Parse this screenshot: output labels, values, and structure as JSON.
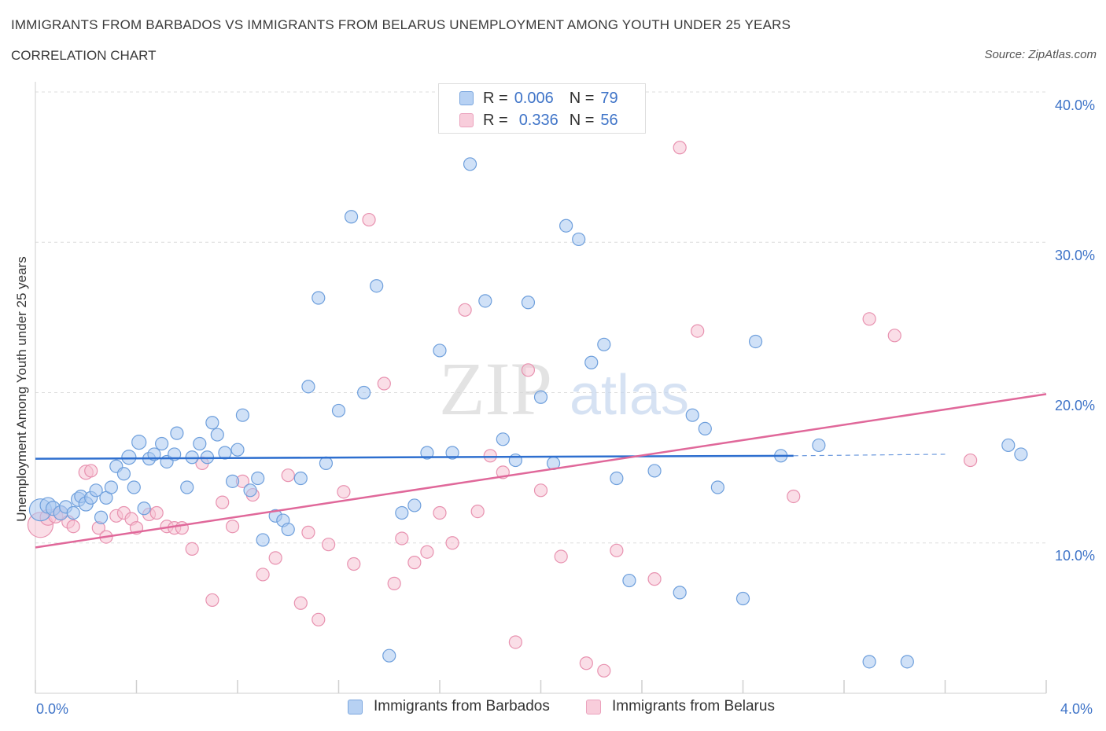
{
  "header": {
    "title": "IMMIGRANTS FROM BARBADOS VS IMMIGRANTS FROM BELARUS UNEMPLOYMENT AMONG YOUTH UNDER 25 YEARS",
    "subtitle": "CORRELATION CHART",
    "source": "Source: ZipAtlas.com"
  },
  "legend": {
    "rows": [
      {
        "r_label": "R =",
        "r_value": "0.006",
        "n_label": "N =",
        "n_value": "79"
      },
      {
        "r_label": "R =",
        "r_value": "0.336",
        "n_label": "N =",
        "n_value": "56"
      }
    ],
    "bottom": [
      "Immigrants from Barbados",
      "Immigrants from Belarus"
    ]
  },
  "watermark": {
    "zip": "ZIP",
    "atlas": "atlas"
  },
  "colors": {
    "barbados_fill": "#a9c8f0",
    "barbados_stroke": "#6e9fdc",
    "barbados_line": "#2e6fcf",
    "belarus_fill": "#f6c3d3",
    "belarus_stroke": "#e892b0",
    "belarus_line": "#e0689a",
    "axis_text": "#3f74c8",
    "grid": "#dddddd"
  },
  "chart_data": {
    "type": "scatter",
    "xlabel": "",
    "ylabel": "Unemployment Among Youth under 25 years",
    "x_tick_labels": [
      "0.0%",
      "4.0%"
    ],
    "y_tick_labels": [
      "10.0%",
      "20.0%",
      "30.0%",
      "40.0%"
    ],
    "y_ticks": [
      10,
      20,
      30,
      40
    ],
    "xlim": [
      0,
      4
    ],
    "ylim": [
      0,
      40
    ],
    "grid": true,
    "legend_position": "top-center",
    "series": [
      {
        "name": "Immigrants from Barbados",
        "trend": {
          "x0": 0,
          "y0": 15.6,
          "x1": 3.0,
          "y1": 15.8,
          "dash_to_x": 3.6,
          "dash_to_y": 15.9
        },
        "points": [
          [
            0.02,
            12.2,
            14
          ],
          [
            0.05,
            12.5,
            10
          ],
          [
            0.07,
            12.3,
            9
          ],
          [
            0.1,
            12.0,
            9
          ],
          [
            0.12,
            12.4,
            8
          ],
          [
            0.15,
            12.0,
            8
          ],
          [
            0.17,
            12.9,
            9
          ],
          [
            0.18,
            13.1,
            8
          ],
          [
            0.2,
            12.6,
            9
          ],
          [
            0.22,
            13.0,
            8
          ],
          [
            0.24,
            13.5,
            8
          ],
          [
            0.26,
            11.7,
            8
          ],
          [
            0.28,
            13.0,
            8
          ],
          [
            0.3,
            13.7,
            8
          ],
          [
            0.32,
            15.1,
            8
          ],
          [
            0.35,
            14.6,
            8
          ],
          [
            0.37,
            15.7,
            9
          ],
          [
            0.39,
            13.7,
            8
          ],
          [
            0.41,
            16.7,
            9
          ],
          [
            0.43,
            12.3,
            8
          ],
          [
            0.45,
            15.6,
            8
          ],
          [
            0.47,
            15.9,
            8
          ],
          [
            0.5,
            16.6,
            8
          ],
          [
            0.52,
            15.4,
            8
          ],
          [
            0.55,
            15.9,
            8
          ],
          [
            0.56,
            17.3,
            8
          ],
          [
            0.6,
            13.7,
            8
          ],
          [
            0.62,
            15.7,
            8
          ],
          [
            0.65,
            16.6,
            8
          ],
          [
            0.68,
            15.7,
            8
          ],
          [
            0.7,
            18.0,
            8
          ],
          [
            0.72,
            17.2,
            8
          ],
          [
            0.75,
            16.0,
            8
          ],
          [
            0.78,
            14.1,
            8
          ],
          [
            0.8,
            16.2,
            8
          ],
          [
            0.82,
            18.5,
            8
          ],
          [
            0.85,
            13.5,
            8
          ],
          [
            0.88,
            14.3,
            8
          ],
          [
            0.9,
            10.2,
            8
          ],
          [
            0.95,
            11.8,
            8
          ],
          [
            0.98,
            11.5,
            8
          ],
          [
            1.0,
            10.9,
            8
          ],
          [
            1.05,
            14.3,
            8
          ],
          [
            1.08,
            20.4,
            8
          ],
          [
            1.12,
            26.3,
            8
          ],
          [
            1.15,
            15.3,
            8
          ],
          [
            1.2,
            18.8,
            8
          ],
          [
            1.25,
            31.7,
            8
          ],
          [
            1.3,
            20.0,
            8
          ],
          [
            1.35,
            27.1,
            8
          ],
          [
            1.4,
            2.5,
            8
          ],
          [
            1.45,
            12.0,
            8
          ],
          [
            1.5,
            12.5,
            8
          ],
          [
            1.55,
            16.0,
            8
          ],
          [
            1.6,
            22.8,
            8
          ],
          [
            1.65,
            16.0,
            8
          ],
          [
            1.72,
            35.2,
            8
          ],
          [
            1.78,
            26.1,
            8
          ],
          [
            1.85,
            16.9,
            8
          ],
          [
            1.9,
            15.5,
            8
          ],
          [
            1.95,
            26.0,
            8
          ],
          [
            2.0,
            19.7,
            8
          ],
          [
            2.05,
            15.3,
            8
          ],
          [
            2.1,
            31.1,
            8
          ],
          [
            2.15,
            30.2,
            8
          ],
          [
            2.2,
            22.0,
            8
          ],
          [
            2.25,
            23.2,
            8
          ],
          [
            2.3,
            14.3,
            8
          ],
          [
            2.35,
            7.5,
            8
          ],
          [
            2.45,
            14.8,
            8
          ],
          [
            2.55,
            6.7,
            8
          ],
          [
            2.6,
            18.5,
            8
          ],
          [
            2.65,
            17.6,
            8
          ],
          [
            2.7,
            13.7,
            8
          ],
          [
            2.8,
            6.3,
            8
          ],
          [
            2.85,
            23.4,
            8
          ],
          [
            2.95,
            15.8,
            8
          ],
          [
            3.1,
            16.5,
            8
          ],
          [
            3.3,
            2.1,
            8
          ],
          [
            3.45,
            2.1,
            8
          ],
          [
            3.85,
            16.5,
            8
          ],
          [
            3.9,
            15.9,
            8
          ]
        ]
      },
      {
        "name": "Immigrants from Belarus",
        "trend": {
          "x0": 0,
          "y0": 9.7,
          "x1": 4.0,
          "y1": 19.9
        },
        "points": [
          [
            0.02,
            11.2,
            16
          ],
          [
            0.05,
            11.7,
            10
          ],
          [
            0.08,
            11.8,
            9
          ],
          [
            0.1,
            12.0,
            9
          ],
          [
            0.13,
            11.4,
            8
          ],
          [
            0.15,
            11.1,
            8
          ],
          [
            0.2,
            14.7,
            9
          ],
          [
            0.22,
            14.8,
            8
          ],
          [
            0.25,
            11.0,
            8
          ],
          [
            0.28,
            10.4,
            8
          ],
          [
            0.32,
            11.8,
            8
          ],
          [
            0.35,
            12.0,
            8
          ],
          [
            0.38,
            11.6,
            8
          ],
          [
            0.4,
            11.0,
            8
          ],
          [
            0.45,
            11.9,
            8
          ],
          [
            0.48,
            12.0,
            8
          ],
          [
            0.52,
            11.1,
            8
          ],
          [
            0.55,
            11.0,
            8
          ],
          [
            0.58,
            11.0,
            8
          ],
          [
            0.62,
            9.6,
            8
          ],
          [
            0.66,
            15.3,
            8
          ],
          [
            0.7,
            6.2,
            8
          ],
          [
            0.74,
            12.7,
            8
          ],
          [
            0.78,
            11.1,
            8
          ],
          [
            0.82,
            14.1,
            8
          ],
          [
            0.86,
            13.2,
            8
          ],
          [
            0.9,
            7.9,
            8
          ],
          [
            0.95,
            9.0,
            8
          ],
          [
            1.0,
            14.5,
            8
          ],
          [
            1.05,
            6.0,
            8
          ],
          [
            1.08,
            10.7,
            8
          ],
          [
            1.12,
            4.9,
            8
          ],
          [
            1.16,
            9.9,
            8
          ],
          [
            1.22,
            13.4,
            8
          ],
          [
            1.26,
            8.6,
            8
          ],
          [
            1.32,
            31.5,
            8
          ],
          [
            1.38,
            20.6,
            8
          ],
          [
            1.42,
            7.3,
            8
          ],
          [
            1.45,
            10.3,
            8
          ],
          [
            1.5,
            8.7,
            8
          ],
          [
            1.55,
            9.4,
            8
          ],
          [
            1.6,
            12.0,
            8
          ],
          [
            1.65,
            10.0,
            8
          ],
          [
            1.7,
            25.5,
            8
          ],
          [
            1.75,
            12.1,
            8
          ],
          [
            1.8,
            15.8,
            8
          ],
          [
            1.85,
            14.7,
            8
          ],
          [
            1.9,
            3.4,
            8
          ],
          [
            1.95,
            21.5,
            8
          ],
          [
            2.0,
            13.5,
            8
          ],
          [
            2.08,
            9.1,
            8
          ],
          [
            2.18,
            2.0,
            8
          ],
          [
            2.25,
            1.5,
            8
          ],
          [
            2.3,
            9.5,
            8
          ],
          [
            2.45,
            7.6,
            8
          ],
          [
            2.55,
            36.3,
            8
          ],
          [
            2.62,
            24.1,
            8
          ],
          [
            3.0,
            13.1,
            8
          ],
          [
            3.3,
            24.9,
            8
          ],
          [
            3.4,
            23.8,
            8
          ],
          [
            3.7,
            15.5,
            8
          ]
        ]
      }
    ]
  }
}
